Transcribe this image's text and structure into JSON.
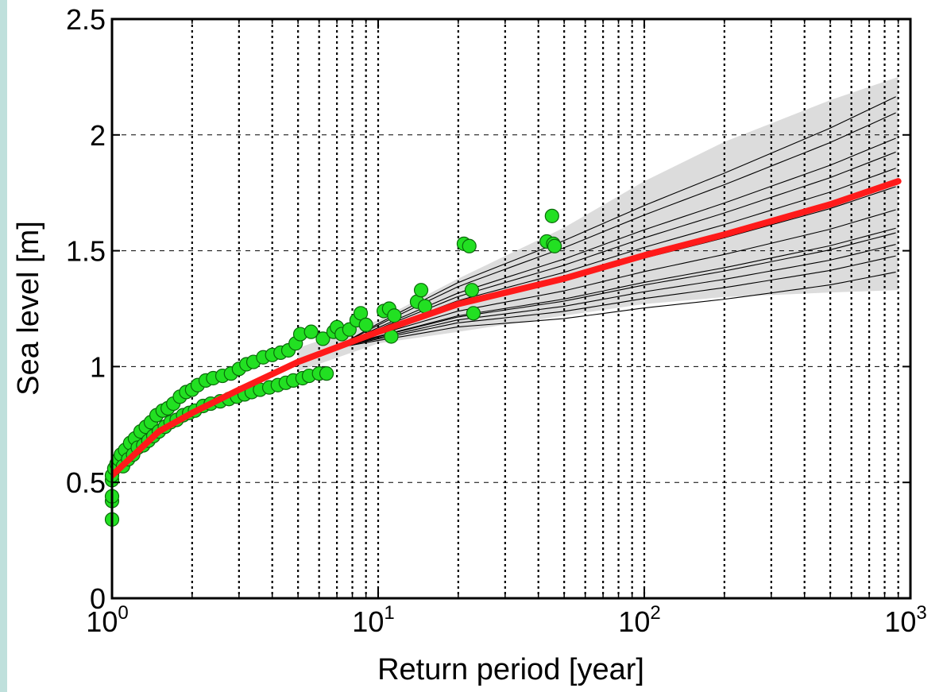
{
  "chart_data": {
    "type": "scatter",
    "title": "",
    "xlabel": "Return period [year]",
    "ylabel": "Sea level [m]",
    "x_scale": "log",
    "xlim": [
      1,
      1000
    ],
    "ylim": [
      0,
      2.5
    ],
    "x_ticks": [
      {
        "base": "10",
        "exp": "0",
        "value": 1
      },
      {
        "base": "10",
        "exp": "1",
        "value": 10
      },
      {
        "base": "10",
        "exp": "2",
        "value": 100
      },
      {
        "base": "10",
        "exp": "3",
        "value": 1000
      }
    ],
    "y_ticks": [
      "0",
      "0.5",
      "1",
      "1.5",
      "2",
      "2.5"
    ],
    "grid": "on",
    "colors": {
      "observed": "#22e022",
      "median_fit": "#ff1a1a",
      "ensemble": "#000000",
      "confidence_band": "#dcdcdc"
    },
    "observed_points": [
      [
        1.0,
        0.34
      ],
      [
        1.0,
        0.42
      ],
      [
        1.0,
        0.44
      ],
      [
        1.0,
        0.51
      ],
      [
        1.0,
        0.53
      ],
      [
        1.02,
        0.56
      ],
      [
        1.04,
        0.58
      ],
      [
        1.06,
        0.6
      ],
      [
        1.08,
        0.62
      ],
      [
        1.1,
        0.57
      ],
      [
        1.12,
        0.64
      ],
      [
        1.15,
        0.6
      ],
      [
        1.17,
        0.67
      ],
      [
        1.2,
        0.62
      ],
      [
        1.22,
        0.69
      ],
      [
        1.25,
        0.65
      ],
      [
        1.28,
        0.72
      ],
      [
        1.31,
        0.66
      ],
      [
        1.34,
        0.74
      ],
      [
        1.37,
        0.68
      ],
      [
        1.4,
        0.76
      ],
      [
        1.43,
        0.7
      ],
      [
        1.47,
        0.79
      ],
      [
        1.5,
        0.72
      ],
      [
        1.55,
        0.81
      ],
      [
        1.58,
        0.74
      ],
      [
        1.62,
        0.82
      ],
      [
        1.66,
        0.76
      ],
      [
        1.7,
        0.84
      ],
      [
        1.75,
        0.77
      ],
      [
        1.8,
        0.87
      ],
      [
        1.85,
        0.79
      ],
      [
        1.9,
        0.89
      ],
      [
        1.95,
        0.8
      ],
      [
        2.0,
        0.9
      ],
      [
        2.05,
        0.81
      ],
      [
        2.1,
        0.92
      ],
      [
        2.2,
        0.83
      ],
      [
        2.25,
        0.94
      ],
      [
        2.35,
        0.84
      ],
      [
        2.4,
        0.95
      ],
      [
        2.55,
        0.85
      ],
      [
        2.6,
        0.96
      ],
      [
        2.75,
        0.86
      ],
      [
        2.8,
        0.97
      ],
      [
        2.95,
        0.87
      ],
      [
        3.0,
        0.99
      ],
      [
        3.15,
        0.88
      ],
      [
        3.2,
        1.01
      ],
      [
        3.35,
        0.89
      ],
      [
        3.4,
        1.02
      ],
      [
        3.6,
        0.9
      ],
      [
        3.7,
        1.04
      ],
      [
        3.9,
        0.91
      ],
      [
        4.0,
        1.05
      ],
      [
        4.2,
        0.92
      ],
      [
        4.3,
        1.06
      ],
      [
        4.5,
        0.93
      ],
      [
        4.6,
        1.07
      ],
      [
        4.8,
        0.94
      ],
      [
        4.9,
        1.1
      ],
      [
        5.2,
        0.95
      ],
      [
        5.1,
        1.14
      ],
      [
        5.5,
        0.96
      ],
      [
        5.6,
        1.15
      ],
      [
        6.0,
        0.97
      ],
      [
        6.4,
        0.97
      ],
      [
        6.2,
        1.12
      ],
      [
        6.8,
        1.15
      ],
      [
        7.0,
        1.17
      ],
      [
        7.3,
        1.14
      ],
      [
        7.8,
        1.16
      ],
      [
        8.3,
        1.2
      ],
      [
        8.6,
        1.23
      ],
      [
        9.0,
        1.18
      ],
      [
        10.5,
        1.24
      ],
      [
        11.0,
        1.25
      ],
      [
        11.5,
        1.22
      ],
      [
        11.2,
        1.13
      ],
      [
        14.0,
        1.28
      ],
      [
        14.5,
        1.33
      ],
      [
        15.0,
        1.26
      ],
      [
        21.0,
        1.53
      ],
      [
        22.0,
        1.52
      ],
      [
        22.5,
        1.33
      ],
      [
        22.8,
        1.23
      ],
      [
        43.0,
        1.54
      ],
      [
        45.0,
        1.65
      ],
      [
        45.5,
        1.53
      ],
      [
        46.0,
        1.52
      ]
    ],
    "median_fit": {
      "x": [
        1,
        1.5,
        2,
        3,
        5,
        10,
        20,
        50,
        100,
        200,
        500,
        900
      ],
      "y": [
        0.53,
        0.72,
        0.8,
        0.9,
        1.02,
        1.15,
        1.27,
        1.38,
        1.48,
        1.57,
        1.7,
        1.8
      ]
    },
    "confidence_band": {
      "x": [
        5,
        10,
        20,
        50,
        100,
        200,
        500,
        900
      ],
      "lower": [
        0.98,
        1.1,
        1.15,
        1.22,
        1.27,
        1.3,
        1.32,
        1.33
      ],
      "upper": [
        1.08,
        1.2,
        1.38,
        1.6,
        1.8,
        1.97,
        2.15,
        2.25
      ]
    },
    "ensemble_lines_at_end": [
      1.41,
      1.48,
      1.53,
      1.58,
      1.6,
      1.68,
      1.78,
      1.86,
      1.93,
      1.99,
      2.1,
      2.17
    ]
  }
}
